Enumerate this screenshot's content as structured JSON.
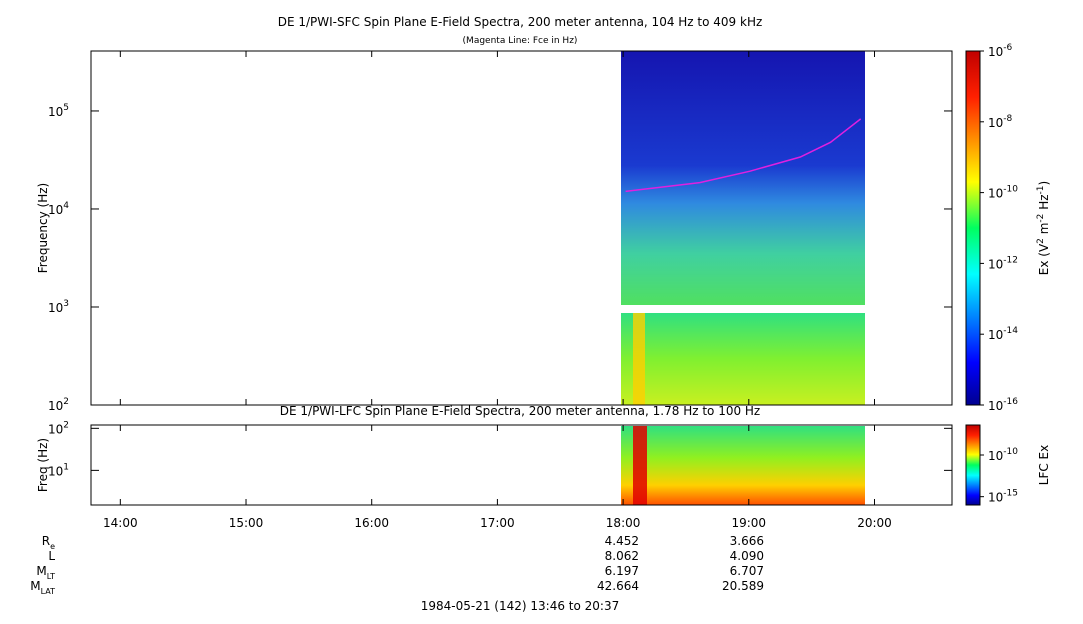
{
  "chart_data": [
    {
      "type": "spectrogram",
      "title": "DE 1/PWI-SFC  Spin Plane E-Field Spectra, 200 meter antenna, 104 Hz to 409 kHz",
      "subtitle": "(Magenta Line: Fce in Hz)",
      "y_label": "Frequency (Hz)",
      "log_y": true,
      "xlim": [
        13.7667,
        20.6167
      ],
      "ylim": [
        100,
        409000
      ],
      "yticks": [
        {
          "value": 100,
          "label": "10",
          "exponent": "2"
        },
        {
          "value": 1000,
          "label": "10",
          "exponent": "3"
        },
        {
          "value": 10000,
          "label": "10",
          "exponent": "4"
        },
        {
          "value": 100000,
          "label": "10",
          "exponent": "5"
        }
      ],
      "series": [
        {
          "color": "#e020e0",
          "x": [
            18.02,
            18.29,
            18.61,
            19.01,
            19.41,
            19.65,
            19.89
          ],
          "values": [
            15100,
            16600,
            18600,
            24300,
            33900,
            47900,
            83000
          ]
        }
      ],
      "colorbar": {
        "ylim": [
          1e-16,
          1e-06
        ],
        "ticks": [
          {
            "value": 1e-06,
            "label": "10",
            "exponent": "-6"
          },
          {
            "value": 1e-08,
            "label": "10",
            "exponent": "-8"
          },
          {
            "value": 1e-10,
            "label": "10",
            "exponent": "-10"
          },
          {
            "value": 1e-12,
            "label": "10",
            "exponent": "-12"
          },
          {
            "value": 1e-14,
            "label": "10",
            "exponent": "-14"
          },
          {
            "value": 1e-16,
            "label": "10",
            "exponent": "-16"
          }
        ],
        "label": [
          {
            "text": "Ex (V"
          },
          {
            "text": "2",
            "sup": true
          },
          {
            "text": " m"
          },
          {
            "text": "-2",
            "sup": true
          },
          {
            "text": " Hz"
          },
          {
            "text": "-1",
            "sup": true
          },
          {
            "text": ")"
          }
        ]
      }
    },
    {
      "type": "spectrogram",
      "title": "DE 1/PWI-LFC  Spin Plane E-Field Spectra, 200 meter antenna, 1.78 Hz to 100 Hz",
      "y_label": "Freq (Hz)",
      "log_y": true,
      "xlim": [
        13.7667,
        20.6167
      ],
      "xticks": [
        {
          "value": 14,
          "label": "14:00"
        },
        {
          "value": 15,
          "label": "15:00"
        },
        {
          "value": 16,
          "label": "16:00"
        },
        {
          "value": 17,
          "label": "17:00"
        },
        {
          "value": 18,
          "label": "18:00"
        },
        {
          "value": 19,
          "label": "19:00"
        },
        {
          "value": 20,
          "label": "20:00"
        }
      ],
      "ylim": [
        1.5,
        120
      ],
      "yticks": [
        {
          "value": 10,
          "label": "10",
          "exponent": "1"
        },
        {
          "value": 100,
          "label": "10",
          "exponent": "2"
        }
      ],
      "colorbar": {
        "ylim": [
          1e-16,
          4e-07
        ],
        "ticks": [
          {
            "value": 1e-10,
            "label": "10",
            "exponent": "-10"
          },
          {
            "value": 1e-15,
            "label": "10",
            "exponent": "-15"
          }
        ],
        "label": [
          {
            "text": "LFC Ex"
          }
        ]
      }
    }
  ],
  "ephemeris": {
    "rows": [
      {
        "label": "R",
        "sub": "e",
        "values": [
          "4.452",
          "3.666"
        ]
      },
      {
        "label": "L",
        "values": [
          "8.062",
          "4.090"
        ]
      },
      {
        "label": "M",
        "sub": "LT",
        "values": [
          "6.197",
          "6.707"
        ]
      },
      {
        "label": "M",
        "sub": "LAT",
        "values": [
          "42.664",
          "20.589"
        ]
      }
    ]
  },
  "footer": "1984-05-21 (142) 13:46 to 20:37"
}
